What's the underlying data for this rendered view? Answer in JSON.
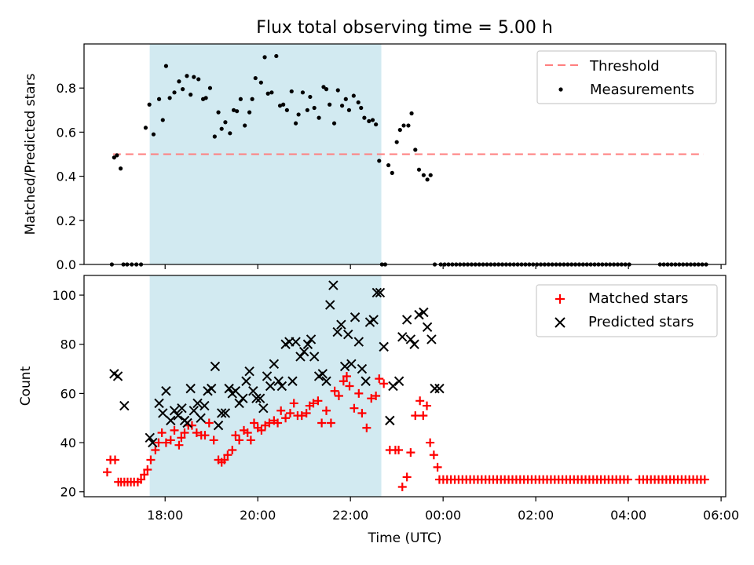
{
  "title": "Flux total observing time = 5.00 h",
  "chart_data": [
    {
      "type": "scatter",
      "ylabel": "Matched/Predicted stars",
      "xlim": [
        16.25,
        30.1
      ],
      "ylim": [
        0,
        1.0
      ],
      "yticks": [
        0.0,
        0.2,
        0.4,
        0.6,
        0.8
      ],
      "ytick_labels": [
        "0.0",
        "0.2",
        "0.4",
        "0.6",
        "0.8"
      ],
      "shaded_x_range": [
        17.667,
        22.667
      ],
      "shade_color": "#add8e6",
      "threshold": {
        "name": "Threshold",
        "value": 0.5,
        "x_range": [
          16.875,
          29.625
        ],
        "color": "#ff7f7f"
      },
      "legend": [
        "Threshold",
        "Measurements"
      ],
      "legend_position": "upper right",
      "series": [
        {
          "name": "Measurements",
          "color": "#000000",
          "x": [
            16.85,
            16.9,
            16.96,
            17.04,
            17.1,
            17.18,
            17.28,
            17.38,
            17.48,
            17.58,
            17.66,
            17.75,
            17.87,
            17.95,
            18.02,
            18.1,
            18.2,
            18.3,
            18.38,
            18.47,
            18.55,
            18.62,
            18.72,
            18.82,
            18.88,
            18.97,
            19.07,
            19.15,
            19.22,
            19.3,
            19.4,
            19.48,
            19.55,
            19.63,
            19.72,
            19.82,
            19.88,
            19.95,
            20.07,
            20.15,
            20.22,
            20.3,
            20.4,
            20.48,
            20.55,
            20.63,
            20.73,
            20.82,
            20.88,
            20.97,
            21.07,
            21.13,
            21.22,
            21.32,
            21.42,
            21.48,
            21.55,
            21.65,
            21.73,
            21.82,
            21.9,
            21.97,
            22.07,
            22.17,
            22.23,
            22.3,
            22.4,
            22.48,
            22.55,
            22.62,
            22.68,
            22.75,
            22.82,
            22.9,
            23.0,
            23.07,
            23.15,
            23.25,
            23.32,
            23.4,
            23.48,
            23.58,
            23.66,
            23.73,
            23.82
          ],
          "y": [
            0.0,
            0.485,
            0.495,
            0.435,
            0.0,
            0.0,
            0.0,
            0.0,
            0.0,
            0.62,
            0.725,
            0.59,
            0.75,
            0.655,
            0.9,
            0.755,
            0.78,
            0.83,
            0.795,
            0.855,
            0.77,
            0.85,
            0.84,
            0.75,
            0.755,
            0.8,
            0.58,
            0.69,
            0.615,
            0.645,
            0.595,
            0.7,
            0.695,
            0.75,
            0.63,
            0.69,
            0.75,
            0.845,
            0.825,
            0.94,
            0.775,
            0.78,
            0.945,
            0.72,
            0.725,
            0.7,
            0.785,
            0.64,
            0.68,
            0.78,
            0.7,
            0.76,
            0.71,
            0.665,
            0.805,
            0.795,
            0.725,
            0.64,
            0.79,
            0.72,
            0.75,
            0.7,
            0.765,
            0.735,
            0.71,
            0.665,
            0.65,
            0.655,
            0.635,
            0.47,
            0.0,
            0.0,
            0.45,
            0.415,
            0.555,
            0.61,
            0.63,
            0.63,
            0.685,
            0.52,
            0.43,
            0.405,
            0.385,
            0.405,
            0.0
          ],
          "x_zero_run": [
            23.95,
            29.7
          ],
          "zero_run_gap": [
            28.05,
            28.65
          ]
        }
      ]
    },
    {
      "type": "scatter",
      "xlabel": "Time (UTC)",
      "ylabel": "Count",
      "xlim": [
        16.25,
        30.1
      ],
      "ylim": [
        18,
        108
      ],
      "xticks": [
        18,
        20,
        22,
        24,
        26,
        28,
        30
      ],
      "xtick_labels": [
        "18:00",
        "20:00",
        "22:00",
        "00:00",
        "02:00",
        "04:00",
        "06:00"
      ],
      "yticks": [
        20,
        40,
        60,
        80,
        100
      ],
      "ytick_labels": [
        "20",
        "40",
        "60",
        "80",
        "100"
      ],
      "shaded_x_range": [
        17.667,
        22.667
      ],
      "shade_color": "#add8e6",
      "legend": [
        "Matched stars",
        "Predicted stars"
      ],
      "legend_position": "upper right",
      "series": [
        {
          "name": "Matched stars",
          "marker": "+",
          "color": "#ff0000",
          "x": [
            16.75,
            16.82,
            16.92,
            16.99,
            17.05,
            17.12,
            17.19,
            17.26,
            17.33,
            17.41,
            17.48,
            17.55,
            17.62,
            17.69,
            17.79,
            17.86,
            17.93,
            18.02,
            18.12,
            18.2,
            18.3,
            18.35,
            18.42,
            18.5,
            18.58,
            18.68,
            18.78,
            18.86,
            18.95,
            19.05,
            19.15,
            19.22,
            19.28,
            19.35,
            19.45,
            19.52,
            19.6,
            19.7,
            19.78,
            19.85,
            19.92,
            20.0,
            20.08,
            20.16,
            20.25,
            20.35,
            20.43,
            20.5,
            20.6,
            20.7,
            20.78,
            20.86,
            20.95,
            21.05,
            21.12,
            21.2,
            21.3,
            21.38,
            21.48,
            21.58,
            21.66,
            21.75,
            21.85,
            21.92,
            21.98,
            22.08,
            22.18,
            22.25,
            22.35,
            22.45,
            22.55,
            22.62,
            22.72,
            22.85,
            22.97,
            23.04,
            23.12,
            23.22,
            23.3,
            23.4,
            23.5,
            23.57,
            23.65,
            23.72,
            23.8,
            23.88
          ],
          "y": [
            28,
            33,
            33,
            24,
            24,
            24,
            24,
            24,
            24,
            24,
            25,
            27,
            29,
            33,
            37,
            40,
            44,
            40,
            41,
            45,
            39,
            42,
            44,
            47,
            47,
            44,
            43,
            43,
            48,
            41,
            33,
            32,
            33,
            35,
            37,
            43,
            41,
            45,
            44,
            41,
            48,
            46,
            45,
            47,
            48,
            49,
            48,
            53,
            50,
            52,
            56,
            51,
            51,
            52,
            55,
            56,
            57,
            48,
            53,
            48,
            61,
            59,
            65,
            67,
            63,
            54,
            60,
            52,
            46,
            58,
            59,
            66,
            64,
            37,
            37,
            37,
            22,
            26,
            36,
            51,
            57,
            51,
            55,
            40,
            35,
            30
          ],
          "x_const_run": [
            23.92,
            29.7
          ],
          "const_value": 25,
          "const_run_gap": [
            28.05,
            28.2
          ]
        },
        {
          "name": "Predicted stars",
          "marker": "x",
          "color": "#000000",
          "x": [
            16.9,
            16.98,
            17.12,
            17.67,
            17.73,
            17.87,
            17.95,
            18.02,
            18.12,
            18.2,
            18.28,
            18.36,
            18.42,
            18.48,
            18.55,
            18.62,
            18.7,
            18.77,
            18.85,
            18.92,
            19.0,
            19.08,
            19.15,
            19.22,
            19.3,
            19.38,
            19.45,
            19.52,
            19.6,
            19.68,
            19.75,
            19.82,
            19.9,
            19.97,
            20.05,
            20.12,
            20.2,
            20.27,
            20.35,
            20.45,
            20.52,
            20.6,
            20.68,
            20.75,
            20.82,
            20.92,
            21.0,
            21.08,
            21.15,
            21.22,
            21.32,
            21.4,
            21.48,
            21.56,
            21.63,
            21.72,
            21.8,
            21.88,
            21.95,
            22.02,
            22.1,
            22.18,
            22.25,
            22.33,
            22.42,
            22.5,
            22.57,
            22.64,
            22.72,
            22.85,
            22.92,
            23.05,
            23.12,
            23.22,
            23.3,
            23.38,
            23.48,
            23.58,
            23.66,
            23.75,
            23.82,
            23.92
          ],
          "y": [
            68,
            67,
            55,
            42,
            40,
            56,
            52,
            61,
            49,
            53,
            51,
            54,
            49,
            48,
            62,
            53,
            56,
            50,
            55,
            61,
            62,
            71,
            47,
            52,
            52,
            62,
            60,
            61,
            56,
            58,
            65,
            69,
            61,
            58,
            58,
            54,
            67,
            63,
            72,
            65,
            63,
            80,
            81,
            65,
            81,
            75,
            77,
            80,
            82,
            75,
            67,
            68,
            65,
            96,
            104,
            85,
            88,
            71,
            84,
            72,
            91,
            81,
            70,
            65,
            89,
            90,
            101,
            101,
            79,
            49,
            63,
            65,
            83,
            90,
            82,
            80,
            92,
            93,
            87,
            82,
            62,
            62
          ]
        }
      ]
    }
  ]
}
